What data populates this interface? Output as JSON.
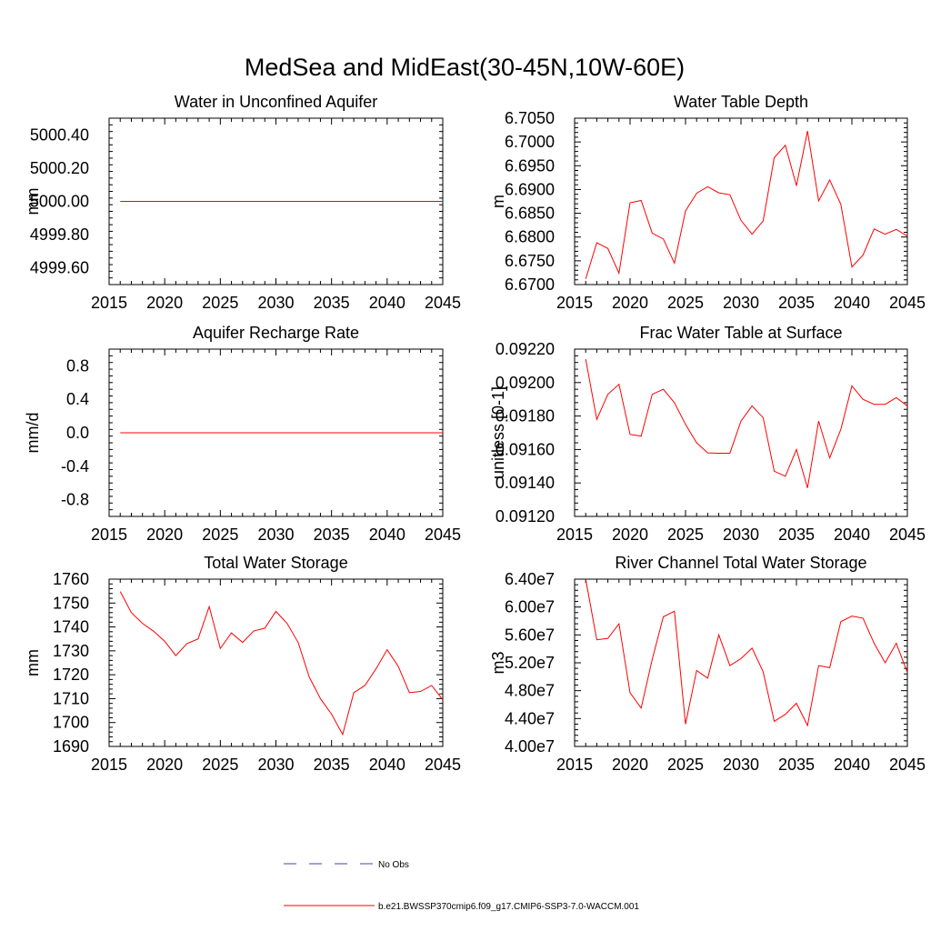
{
  "figure": {
    "title": "MedSea and MidEast(30-45N,10W-60E)"
  },
  "legend": {
    "items": [
      {
        "label": "No Obs",
        "color": "#4444aa",
        "dashed": true
      },
      {
        "label": "b.e21.BWSSP370cmip6.f09_g17.CMIP6-SSP3-7.0-WACCM.001",
        "color": "#ff0000",
        "dashed": false
      }
    ]
  },
  "colors": {
    "series": "#ff0000",
    "obs": "#4444aa"
  },
  "chart_data": [
    {
      "type": "line",
      "title": "Water in Unconfined Aquifer",
      "ylabel": "mm",
      "xlim": [
        2015,
        2045
      ],
      "ylim": [
        4999.5,
        5000.5
      ],
      "xticks": [
        2015,
        2020,
        2025,
        2030,
        2035,
        2040,
        2045
      ],
      "yticks": [
        "4999.60",
        "4999.80",
        "5000.00",
        "5000.20",
        "5000.40"
      ],
      "x": [
        2016,
        2045
      ],
      "series": [
        {
          "values": [
            5000.0,
            5000.0
          ]
        }
      ]
    },
    {
      "type": "line",
      "title": "Water Table Depth",
      "ylabel": "m",
      "xlim": [
        2015,
        2045
      ],
      "ylim": [
        6.67,
        6.705
      ],
      "xticks": [
        2015,
        2020,
        2025,
        2030,
        2035,
        2040,
        2045
      ],
      "yticks": [
        "6.6700",
        "6.6750",
        "6.6800",
        "6.6850",
        "6.6900",
        "6.6950",
        "6.7000",
        "6.7050"
      ],
      "x": [
        2016,
        2017,
        2018,
        2019,
        2020,
        2021,
        2022,
        2023,
        2024,
        2025,
        2026,
        2027,
        2028,
        2029,
        2030,
        2031,
        2032,
        2033,
        2034,
        2035,
        2036,
        2037,
        2038,
        2039,
        2040,
        2041,
        2042,
        2043,
        2044,
        2045
      ],
      "series": [
        {
          "values": [
            6.6712,
            6.6788,
            6.6776,
            6.6724,
            6.6872,
            6.6877,
            6.6808,
            6.6796,
            6.6745,
            6.6855,
            6.6892,
            6.6906,
            6.6893,
            6.6889,
            6.6835,
            6.6806,
            6.6834,
            6.6967,
            6.6993,
            6.6908,
            6.7023,
            6.6876,
            6.692,
            6.6869,
            6.6737,
            6.6762,
            6.6817,
            6.6806,
            6.6816,
            6.6802
          ]
        }
      ]
    },
    {
      "type": "line",
      "title": "Aquifer Recharge Rate",
      "ylabel": "mm/d",
      "xlim": [
        2015,
        2045
      ],
      "ylim": [
        -1.0,
        1.0
      ],
      "xticks": [
        2015,
        2020,
        2025,
        2030,
        2035,
        2040,
        2045
      ],
      "yticks": [
        "-0.8",
        "-0.4",
        "0.0",
        "0.4",
        "0.8"
      ],
      "x": [
        2016,
        2045
      ],
      "series": [
        {
          "values": [
            0.0,
            0.0
          ]
        }
      ]
    },
    {
      "type": "line",
      "title": "Frac Water Table at Surface",
      "ylabel": "unitless [0-1]",
      "xlim": [
        2015,
        2045
      ],
      "ylim": [
        0.0912,
        0.0922
      ],
      "xticks": [
        2015,
        2020,
        2025,
        2030,
        2035,
        2040,
        2045
      ],
      "yticks": [
        "0.09120",
        "0.09140",
        "0.09160",
        "0.09180",
        "0.09200",
        "0.09220"
      ],
      "x": [
        2016,
        2017,
        2018,
        2019,
        2020,
        2021,
        2022,
        2023,
        2024,
        2025,
        2026,
        2027,
        2028,
        2029,
        2030,
        2031,
        2032,
        2033,
        2034,
        2035,
        2036,
        2037,
        2038,
        2039,
        2040,
        2041,
        2042,
        2043,
        2044,
        2045
      ],
      "series": [
        {
          "values": [
            0.09214,
            0.09178,
            0.09193,
            0.09199,
            0.09169,
            0.09168,
            0.09193,
            0.09196,
            0.09188,
            0.09175,
            0.09164,
            0.09158,
            0.091578,
            0.091578,
            0.09177,
            0.09186,
            0.09179,
            0.09147,
            0.09144,
            0.0916,
            0.09137,
            0.09177,
            0.09155,
            0.09172,
            0.09198,
            0.0919,
            0.09187,
            0.09187,
            0.09191,
            0.09186
          ]
        }
      ]
    },
    {
      "type": "line",
      "title": "Total Water Storage",
      "ylabel": "mm",
      "xlim": [
        2015,
        2045
      ],
      "ylim": [
        1690,
        1760
      ],
      "xticks": [
        2015,
        2020,
        2025,
        2030,
        2035,
        2040,
        2045
      ],
      "yticks": [
        "1690",
        "1700",
        "1710",
        "1720",
        "1730",
        "1740",
        "1750",
        "1760"
      ],
      "x": [
        2016,
        2017,
        2018,
        2019,
        2020,
        2021,
        2022,
        2023,
        2024,
        2025,
        2026,
        2027,
        2028,
        2029,
        2030,
        2031,
        2032,
        2033,
        2034,
        2035,
        2036,
        2037,
        2038,
        2039,
        2040,
        2041,
        2042,
        2043,
        2044,
        2045
      ],
      "series": [
        {
          "values": [
            1754.8,
            1746.0,
            1741.5,
            1738.2,
            1734.0,
            1728.0,
            1733.0,
            1735.0,
            1748.5,
            1731.0,
            1737.5,
            1733.5,
            1738.3,
            1739.5,
            1746.5,
            1741.5,
            1733.5,
            1719.0,
            1710.0,
            1703.5,
            1695.0,
            1712.5,
            1715.5,
            1722.5,
            1730.5,
            1723.5,
            1712.5,
            1713.0,
            1715.5,
            1709.5
          ]
        }
      ]
    },
    {
      "type": "line",
      "title": "River Channel Total Water Storage",
      "ylabel": "m3",
      "xlim": [
        2015,
        2045
      ],
      "ylim": [
        40000000,
        64000000
      ],
      "xticks": [
        2015,
        2020,
        2025,
        2030,
        2035,
        2040,
        2045
      ],
      "yticks": [
        "4.00e7",
        "4.40e7",
        "4.80e7",
        "5.20e7",
        "5.60e7",
        "6.00e7",
        "6.40e7"
      ],
      "x": [
        2016,
        2017,
        2018,
        2019,
        2020,
        2021,
        2022,
        2023,
        2024,
        2025,
        2026,
        2027,
        2028,
        2029,
        2030,
        2031,
        2032,
        2033,
        2034,
        2035,
        2036,
        2037,
        2038,
        2039,
        2040,
        2041,
        2042,
        2043,
        2044,
        2045
      ],
      "series": [
        {
          "values": [
            64000000,
            55300000,
            55500000,
            57600000,
            47700000,
            45500000,
            52500000,
            58600000,
            59400000,
            43200000,
            50900000,
            49800000,
            56000000,
            51600000,
            52600000,
            54100000,
            50700000,
            43600000,
            44600000,
            46200000,
            43000000,
            51600000,
            51300000,
            57900000,
            58700000,
            58400000,
            54800000,
            52000000,
            54800000,
            50600000
          ]
        }
      ]
    }
  ]
}
